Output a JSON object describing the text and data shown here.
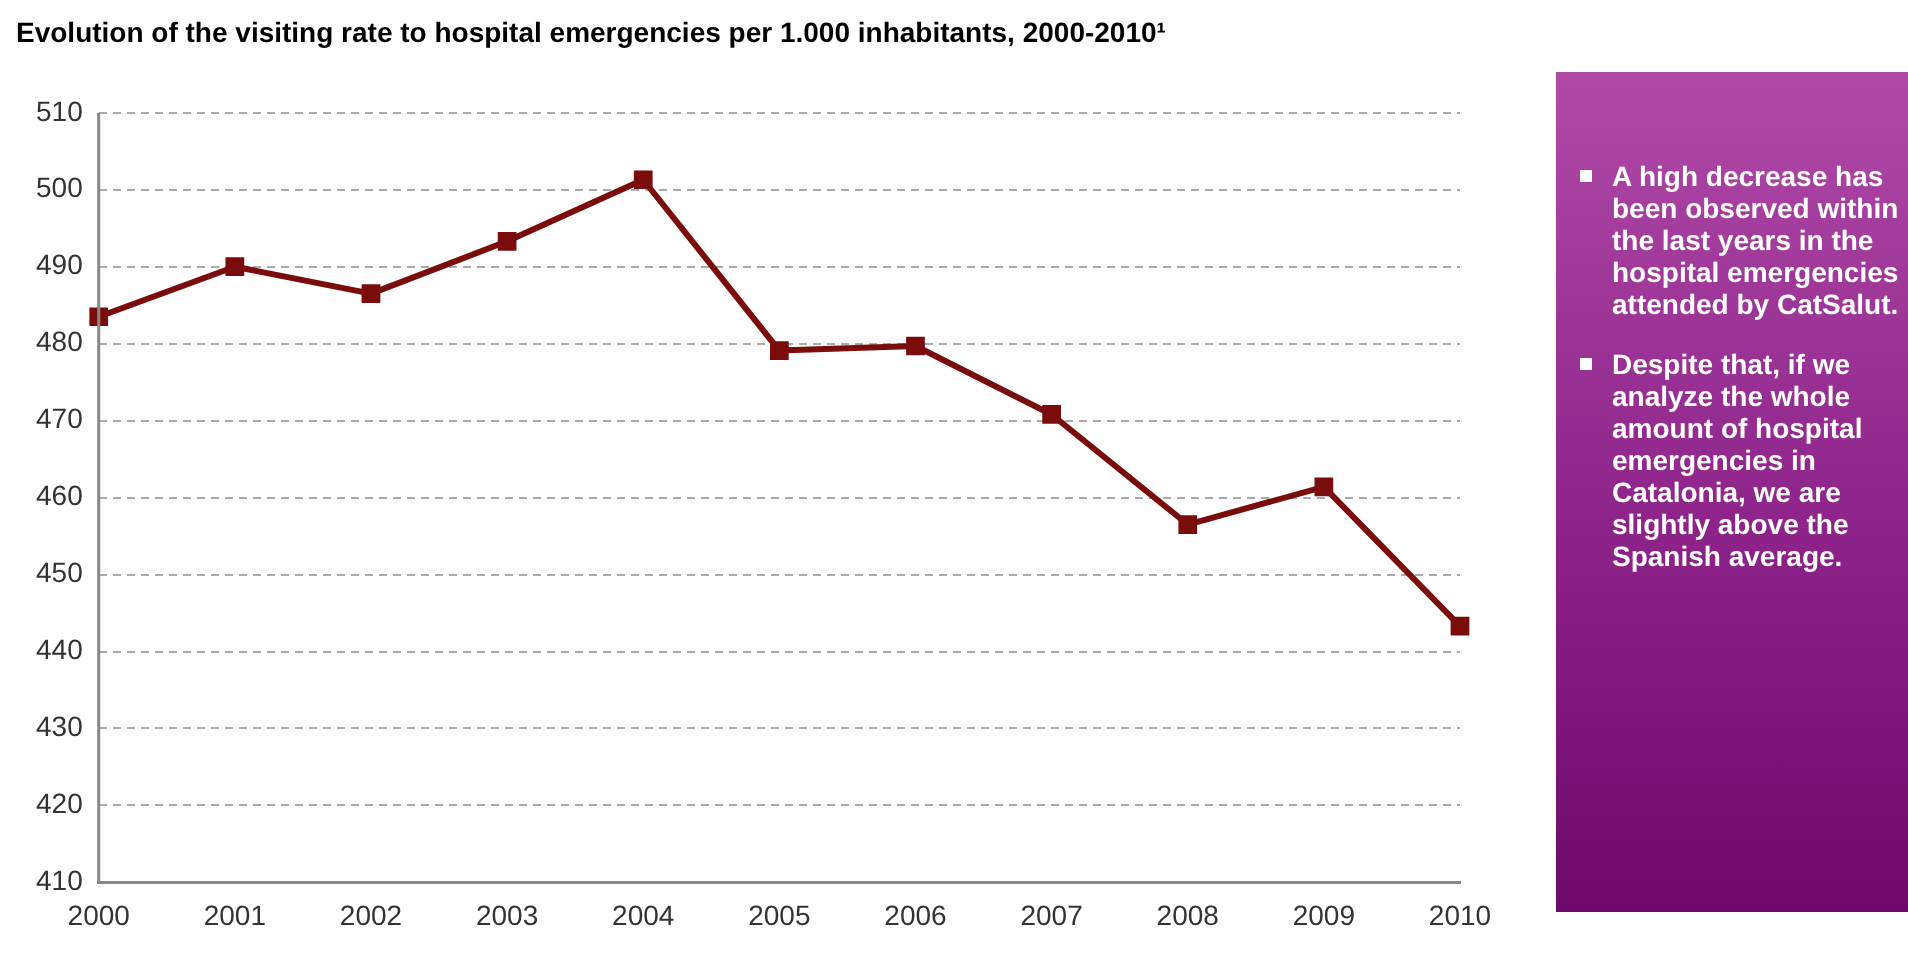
{
  "chart_data": {
    "type": "line",
    "title": "Evolution of the visiting rate to hospital emergencies per 1.000 inhabitants, 2000-2010¹",
    "categories": [
      "2000",
      "2001",
      "2002",
      "2003",
      "2004",
      "2005",
      "2006",
      "2007",
      "2008",
      "2009",
      "2010"
    ],
    "series": [
      {
        "color": "#7b0c0c",
        "values": [
          483.5,
          490,
          486.5,
          493.3,
          501.3,
          479.1,
          479.7,
          470.8,
          456.5,
          461.4,
          443.3
        ]
      }
    ],
    "ylim": [
      410,
      510
    ],
    "yticks": [
      410,
      420,
      430,
      440,
      450,
      460,
      470,
      480,
      490,
      500,
      510
    ],
    "grid": "y",
    "legend": false,
    "marker": "square",
    "line_style": "solid",
    "annotations": [
      "A high decrease has been observed within the last years in the hospital emergencies attended by CatSalut.",
      "Despite that, if we analyze the whole amount of hospital emergencies in Catalonia, we are slightly above the Spanish average."
    ]
  }
}
